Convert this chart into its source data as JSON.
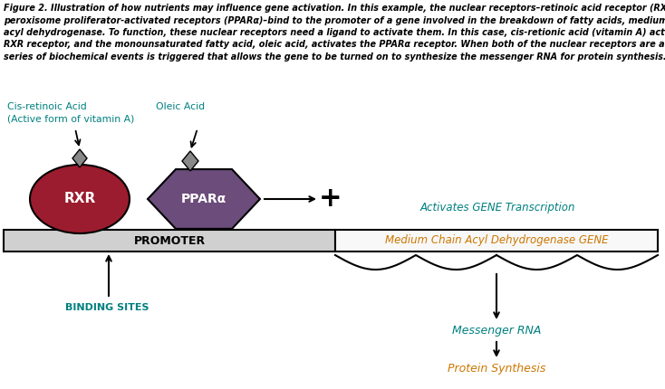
{
  "fig_width": 7.34,
  "fig_height": 4.3,
  "dpi": 100,
  "bg_color": "#ffffff",
  "rxr_color": "#9b1c2e",
  "rxr_label": "RXR",
  "ppar_color": "#6b4c7a",
  "ppar_label": "PPARα",
  "diamond_color": "#888888",
  "promoter_label": "PROMOTER",
  "gene_label": "Medium Chain Acyl Dehydrogenase GENE",
  "activates_label": "Activates GENE Transcription",
  "binding_label": "BINDING SITES",
  "cis_label1": "Cis-retinoic Acid",
  "cis_label2": "(Active form of vitamin A)",
  "oleic_label": "Oleic Acid",
  "mrna_label": "Messenger RNA",
  "protein_label": "Protein Synthesis",
  "promoter_bg": "#d0d0d0",
  "gene_bg": "#f8f8f8",
  "teal": "#008080",
  "orange": "#cc7700",
  "caption_lines": [
    "Figure 2. Illustration of how nutrients may influence gene activation. In this example, the nuclear receptors–retinoic acid receptor (RXR) and",
    "peroxisome proliferator-activated receptors (PPARα)–bind to the promoter of a gene involved in the breakdown of fatty acids, medium chain",
    "acyl dehydrogenase. To function, these nuclear receptors need a ligand to activate them. In this case, cis-retionic acid (vitamin A) activates the",
    "RXR receptor, and the monounsaturated fatty acid, oleic acid, activates the PPARα receptor. When both of the nuclear receptors are activated, a",
    "series of biochemical events is triggered that allows the gene to be turned on to synthesize the messenger RNA for protein synthesis."
  ]
}
